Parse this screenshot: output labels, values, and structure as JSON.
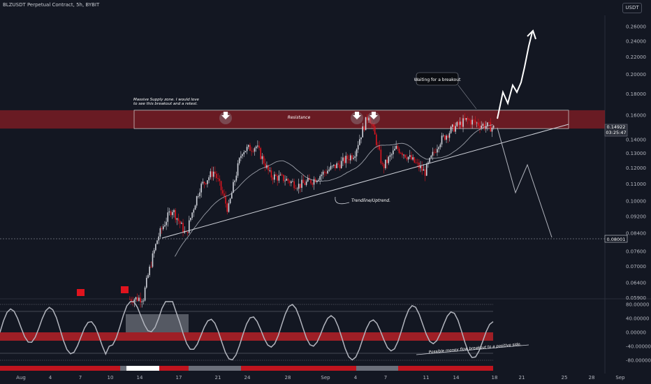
{
  "header": {
    "symbol_line": "BLZUSDT Perpetual Contract, 5h, BYBIT",
    "currency": "USDT"
  },
  "colors": {
    "background": "#131722",
    "up": "#d1d4dc",
    "down": "#e0141e",
    "zone": "#8b1d24",
    "text": "#b2b5be"
  },
  "chart_data": [
    {
      "type": "candlestick",
      "title": "BLZUSDT Perpetual Contract, 5h, BYBIT",
      "y_scale": "log",
      "y_ticks": [
        "0.26000",
        "0.24000",
        "0.22000",
        "0.20000",
        "0.18000",
        "0.16000",
        "0.14000",
        "0.13000",
        "0.12000",
        "0.11000",
        "0.10000",
        "0.09200",
        "0.08400",
        "0.07600",
        "0.07000",
        "0.06400",
        "0.05900"
      ],
      "x_ticks": [
        "Aug",
        "4",
        "7",
        "10",
        "14",
        "17",
        "21",
        "24",
        "28",
        "Sep",
        "4",
        "7",
        "11",
        "14",
        "18",
        "21",
        "25",
        "28",
        "Sep"
      ],
      "price_labels": [
        {
          "value": "0.14922",
          "sub": "03:25:47",
          "color": "#ffffff"
        },
        {
          "value": "0.08001",
          "color": "#ffffff"
        }
      ],
      "resistance_zone": {
        "low": 0.1488,
        "high": 0.1645,
        "label": "Resistance"
      },
      "target_line": 0.08001,
      "annotations": [
        "Massive Supply zone. I would love to see this breakout and a retest.",
        "Resistance",
        "Waiting for a breakout",
        "Trendline/Uptrend."
      ],
      "series": [
        {
          "name": "candles",
          "approx_path": [
            [
              0.0585,
              0.059
            ],
            [
              0.06,
              0.082
            ],
            [
              0.082,
              0.096
            ],
            [
              0.096,
              0.083
            ],
            [
              0.083,
              0.108
            ],
            [
              0.108,
              0.118
            ],
            [
              0.118,
              0.095
            ],
            [
              0.095,
              0.132
            ],
            [
              0.132,
              0.135
            ],
            [
              0.135,
              0.115
            ],
            [
              0.115,
              0.113
            ],
            [
              0.113,
              0.109
            ],
            [
              0.109,
              0.112
            ],
            [
              0.112,
              0.118
            ],
            [
              0.118,
              0.123
            ],
            [
              0.123,
              0.13
            ],
            [
              0.13,
              0.161
            ],
            [
              0.161,
              0.12
            ],
            [
              0.12,
              0.134
            ],
            [
              0.134,
              0.126
            ],
            [
              0.126,
              0.117
            ],
            [
              0.117,
              0.138
            ],
            [
              0.138,
              0.149
            ],
            [
              0.149,
              0.156
            ],
            [
              0.156,
              0.152
            ],
            [
              0.152,
              0.149
            ]
          ]
        }
      ]
    },
    {
      "type": "line",
      "title": "",
      "y_ticks": [
        "80.00000",
        "40.00000",
        "0.00000",
        "-40.00000",
        "-80.00000"
      ],
      "annotations": [
        "Possible money flow breakout to a positive side."
      ],
      "ylim": [
        -95,
        95
      ]
    }
  ]
}
